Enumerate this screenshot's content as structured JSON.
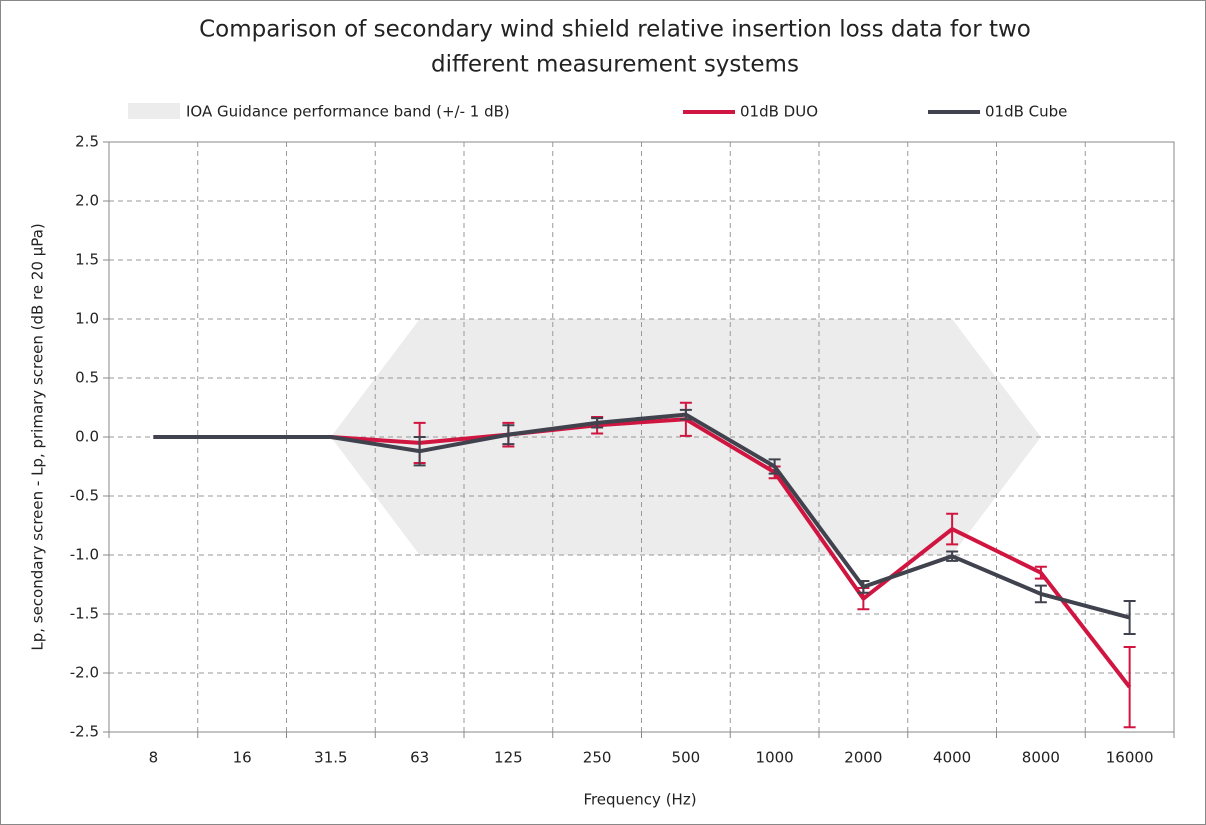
{
  "chart_data": {
    "type": "line",
    "title": "Comparison of secondary wind shield relative insertion loss data for two different measurement systems",
    "title_lines": [
      "Comparison of secondary wind shield relative insertion loss data for two",
      "different measurement systems"
    ],
    "x_label": "Frequency (Hz)",
    "y_label": "Lp, secondary screen - Lp, primary screen (dB re 20 µPa)",
    "categories": [
      "8",
      "16",
      "31.5",
      "63",
      "125",
      "250",
      "500",
      "1000",
      "2000",
      "4000",
      "8000",
      "16000"
    ],
    "band": {
      "name": "IOA Guidance performance band (+/- 1 dB)",
      "color": "#ececec",
      "upper": [
        null,
        null,
        0,
        1,
        1,
        1,
        1,
        1,
        1,
        1,
        0,
        null
      ],
      "lower": [
        null,
        null,
        0,
        -1,
        -1,
        -1,
        -1,
        -1,
        -1,
        -1,
        0,
        null
      ]
    },
    "series": [
      {
        "name": "01dB DUO",
        "color": "#d01640",
        "values": [
          0,
          0,
          0,
          -0.05,
          0.02,
          0.1,
          0.15,
          -0.3,
          -1.37,
          -0.78,
          -1.15,
          -2.12
        ],
        "errors": [
          null,
          null,
          null,
          0.17,
          0.1,
          0.07,
          0.14,
          0.05,
          0.09,
          0.13,
          0.05,
          0.34
        ]
      },
      {
        "name": "01dB Cube",
        "color": "#40424e",
        "values": [
          0,
          0,
          0,
          -0.12,
          0.02,
          0.12,
          0.19,
          -0.25,
          -1.27,
          -1.01,
          -1.33,
          -1.53
        ],
        "errors": [
          null,
          null,
          null,
          0.12,
          0.08,
          0.04,
          0.04,
          0.06,
          0.05,
          0.04,
          0.07,
          0.14
        ]
      }
    ],
    "ylim": [
      -2.5,
      2.5
    ],
    "yticks": [
      {
        "value": 2.5,
        "label": "2.5"
      },
      {
        "value": 2,
        "label": "2.0"
      },
      {
        "value": 1.5,
        "label": "1.5"
      },
      {
        "value": 1,
        "label": "1.0"
      },
      {
        "value": 0.5,
        "label": "0.5"
      },
      {
        "value": 0,
        "label": "0.0"
      },
      {
        "value": -0.5,
        "label": "-0.5"
      },
      {
        "value": -1,
        "label": "-1.0"
      },
      {
        "value": -1.5,
        "label": "-1.5"
      },
      {
        "value": -2,
        "label": "-2.0"
      },
      {
        "value": -2.5,
        "label": "-2.5"
      }
    ],
    "grid": true
  }
}
